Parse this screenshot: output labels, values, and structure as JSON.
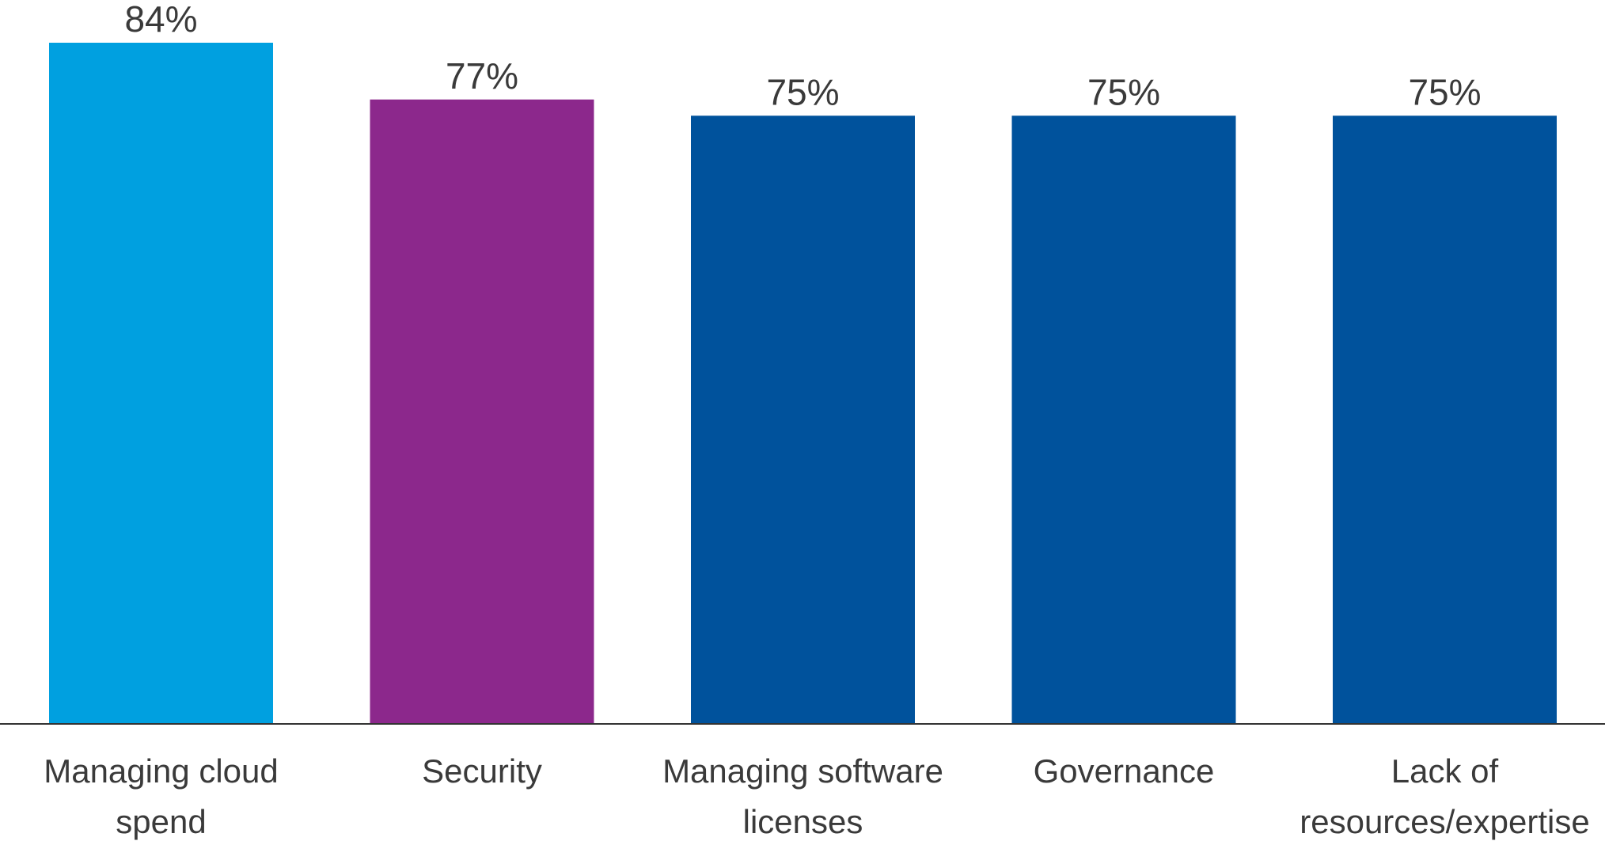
{
  "chart_data": {
    "type": "bar",
    "categories": [
      [
        "Managing cloud",
        "spend"
      ],
      [
        "Security"
      ],
      [
        "Managing software",
        "licenses"
      ],
      [
        "Governance"
      ],
      [
        "Lack of",
        "resources/expertise"
      ]
    ],
    "values": [
      84,
      77,
      75,
      75,
      75
    ],
    "value_labels": [
      "84%",
      "77%",
      "75%",
      "75%",
      "75%"
    ],
    "colors": [
      "#00A0E0",
      "#8C288C",
      "#00529C",
      "#00529C",
      "#00529C"
    ],
    "ylim": [
      0,
      84
    ],
    "grid": false,
    "axis_color": "#333333"
  }
}
